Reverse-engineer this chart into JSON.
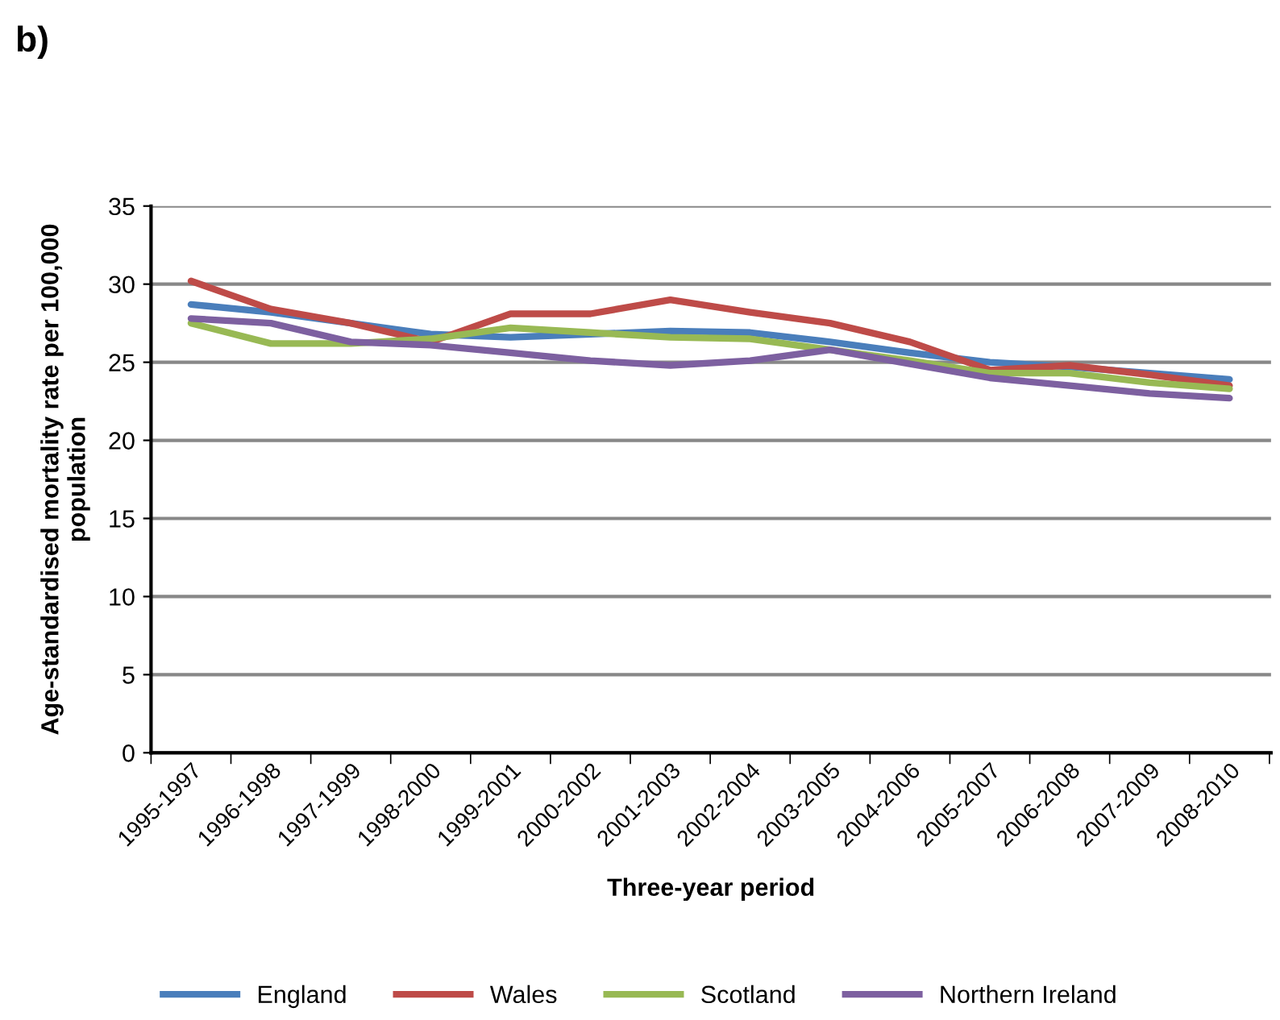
{
  "chart_data": {
    "type": "line",
    "annotations": [
      "b)"
    ],
    "xlabel": "Three-year period",
    "ylabel": "Age-standardised mortality rate per 100,000\npopulation",
    "categories": [
      "1995-1997",
      "1996-1998",
      "1997-1999",
      "1998-2000",
      "1999-2001",
      "2000-2002",
      "2001-2003",
      "2002-2004",
      "2003-2005",
      "2004-2006",
      "2005-2007",
      "2006-2008",
      "2007-2009",
      "2008-2010"
    ],
    "series": [
      {
        "name": "England",
        "color": "#4a7ebb",
        "values": [
          28.7,
          28.2,
          27.5,
          26.8,
          26.6,
          26.8,
          27.0,
          26.9,
          26.3,
          25.6,
          25.0,
          24.7,
          24.3,
          23.9
        ]
      },
      {
        "name": "Wales",
        "color": "#be4b48",
        "values": [
          30.2,
          28.4,
          27.5,
          26.3,
          28.1,
          28.1,
          29.0,
          28.2,
          27.5,
          26.3,
          24.5,
          24.8,
          24.2,
          23.5
        ]
      },
      {
        "name": "Scotland",
        "color": "#98b954",
        "values": [
          27.5,
          26.2,
          26.2,
          26.5,
          27.2,
          26.9,
          26.6,
          26.5,
          25.8,
          25.1,
          24.3,
          24.3,
          23.7,
          23.3
        ]
      },
      {
        "name": "Northern Ireland",
        "color": "#7d60a0",
        "values": [
          27.8,
          27.5,
          26.3,
          26.1,
          25.6,
          25.1,
          24.8,
          25.1,
          25.8,
          24.9,
          24.0,
          23.5,
          23.0,
          22.7
        ]
      }
    ],
    "ylim": [
      0,
      35
    ],
    "yticks": [
      0,
      5,
      10,
      15,
      20,
      25,
      30,
      35
    ],
    "grid": "y",
    "legend": "bottom",
    "marker": "none",
    "line_style": "solid"
  }
}
